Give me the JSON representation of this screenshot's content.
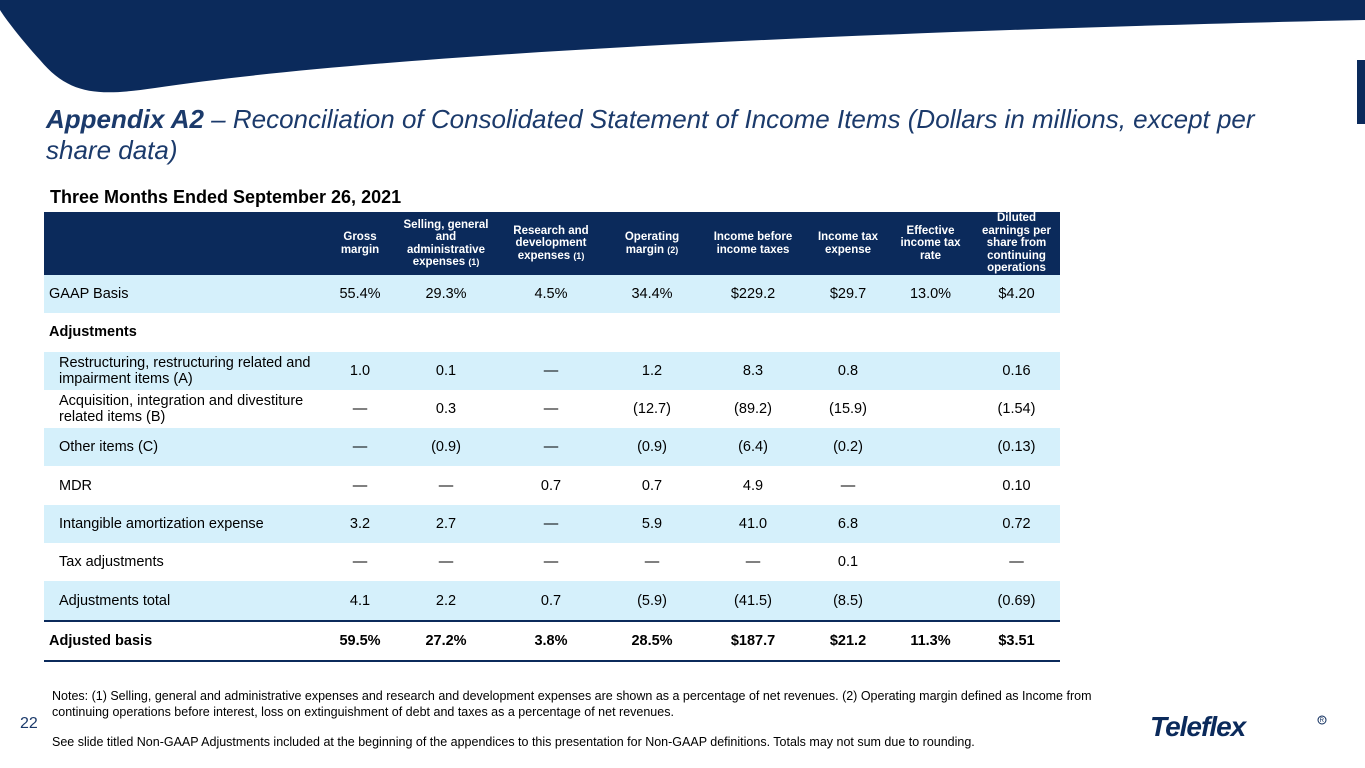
{
  "header": {
    "title_bold": "Appendix A2",
    "title_rest": " – Reconciliation of Consolidated Statement of Income Items (Dollars in millions, except per share data)"
  },
  "table": {
    "period": "Three Months Ended September 26, 2021",
    "headers": [
      {
        "text": "Gross margin",
        "note": ""
      },
      {
        "text": "Selling, general and administrative expenses ",
        "note": "(1)"
      },
      {
        "text": "Research and development expenses ",
        "note": "(1)"
      },
      {
        "text": "Operating margin ",
        "note": "(2)"
      },
      {
        "text": "Income before income taxes",
        "note": ""
      },
      {
        "text": "Income tax expense",
        "note": ""
      },
      {
        "text": "Effective income tax rate",
        "note": ""
      },
      {
        "text": "Diluted earnings per share from continuing operations",
        "note": ""
      }
    ],
    "rows": [
      {
        "label": "GAAP Basis",
        "values": [
          "55.4%",
          "29.3%",
          "4.5%",
          "34.4%",
          "$229.2",
          "$29.7",
          "13.0%",
          "$4.20"
        ]
      },
      {
        "label": "Adjustments",
        "values": [
          "",
          "",
          "",
          "",
          "",
          "",
          "",
          ""
        ]
      },
      {
        "label": "Restructuring, restructuring related and impairment items (A)",
        "values": [
          "1.0",
          "0.1",
          "—",
          "1.2",
          "8.3",
          "0.8",
          "",
          "0.16"
        ]
      },
      {
        "label": "Acquisition, integration and divestiture related items (B)",
        "values": [
          "—",
          "0.3",
          "—",
          "(12.7)",
          "(89.2)",
          "(15.9)",
          "",
          "(1.54)"
        ]
      },
      {
        "label": "Other items (C)",
        "values": [
          "—",
          "(0.9)",
          "—",
          "(0.9)",
          "(6.4)",
          "(0.2)",
          "",
          "(0.13)"
        ]
      },
      {
        "label": "MDR",
        "values": [
          "—",
          "—",
          "0.7",
          "0.7",
          "4.9",
          "—",
          "",
          "0.10"
        ]
      },
      {
        "label": "Intangible amortization expense",
        "values": [
          "3.2",
          "2.7",
          "—",
          "5.9",
          "41.0",
          "6.8",
          "",
          "0.72"
        ]
      },
      {
        "label": "Tax adjustments",
        "values": [
          "—",
          "—",
          "—",
          "—",
          "—",
          "0.1",
          "",
          "—"
        ]
      },
      {
        "label": "Adjustments total",
        "values": [
          "4.1",
          "2.2",
          "0.7",
          "(5.9)",
          "(41.5)",
          "(8.5)",
          "",
          "(0.69)"
        ]
      },
      {
        "label": "Adjusted basis",
        "values": [
          "59.5%",
          "27.2%",
          "3.8%",
          "28.5%",
          "$187.7",
          "$21.2",
          "11.3%",
          "$3.51"
        ]
      }
    ]
  },
  "notes": {
    "line1": "Notes: (1) Selling, general and administrative expenses and research and development expenses are shown as a percentage of net revenues.  (2) Operating margin defined as Income from continuing operations before interest, loss on extinguishment of debt and taxes as a percentage of net revenues.",
    "line2": "See slide titled Non-GAAP Adjustments included at the beginning of the appendices to this presentation for Non-GAAP definitions. Totals may not sum due to rounding."
  },
  "page_number": "22",
  "logo_text": "Teleflex",
  "colors": {
    "navy": "#0b2a5b",
    "title_blue": "#1b3a6b",
    "row_shade": "#d5f0fb"
  }
}
